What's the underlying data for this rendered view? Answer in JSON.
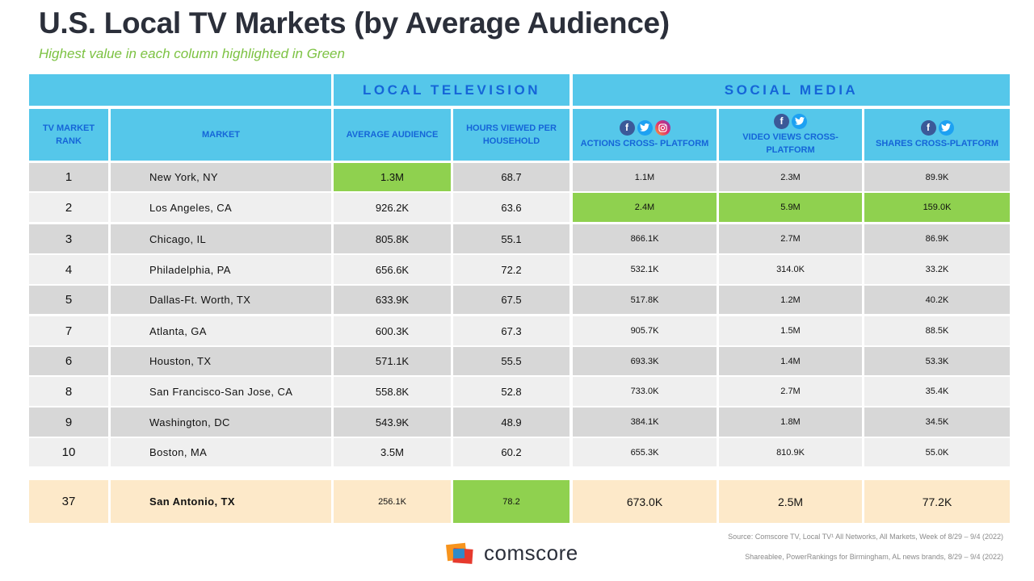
{
  "title": "U.S. Local TV Markets (by Average Audience)",
  "subtitle": "Highest value in each column highlighted in Green",
  "groups": {
    "local_tv": "LOCAL TELEVISION",
    "social_media": "SOCIAL MEDIA"
  },
  "headers": {
    "rank": "TV MARKET RANK",
    "market": "MARKET",
    "avg_audience": "AVERAGE AUDIENCE",
    "hours": "HOURS VIEWED PER HOUSEHOLD",
    "actions": "ACTIONS CROSS- PLATFORM",
    "video_views": "VIDEO VIEWS CROSS-PLATFORM",
    "shares": "SHARES CROSS-PLATFORM"
  },
  "icons": {
    "actions": [
      "facebook-icon",
      "twitter-icon",
      "instagram-icon"
    ],
    "video_views": [
      "facebook-icon",
      "twitter-icon"
    ],
    "shares": [
      "facebook-icon",
      "twitter-icon"
    ]
  },
  "rows": [
    {
      "rank": "1",
      "market": "New York, NY",
      "avg": "1.3M",
      "hours": "68.7",
      "actions": "1.1M",
      "views": "2.3M",
      "shares": "89.9K"
    },
    {
      "rank": "2",
      "market": "Los Angeles, CA",
      "avg": "926.2K",
      "hours": "63.6",
      "actions": "2.4M",
      "views": "5.9M",
      "shares": "159.0K"
    },
    {
      "rank": "3",
      "market": "Chicago, IL",
      "avg": "805.8K",
      "hours": "55.1",
      "actions": "866.1K",
      "views": "2.7M",
      "shares": "86.9K"
    },
    {
      "rank": "4",
      "market": "Philadelphia,  PA",
      "avg": "656.6K",
      "hours": "72.2",
      "actions": "532.1K",
      "views": "314.0K",
      "shares": "33.2K"
    },
    {
      "rank": "5",
      "market": "Dallas-Ft. Worth, TX",
      "avg": "633.9K",
      "hours": "67.5",
      "actions": "517.8K",
      "views": "1.2M",
      "shares": "40.2K"
    },
    {
      "rank": "7",
      "market": "Atlanta, GA",
      "avg": "600.3K",
      "hours": "67.3",
      "actions": "905.7K",
      "views": "1.5M",
      "shares": "88.5K"
    },
    {
      "rank": "6",
      "market": "Houston,  TX",
      "avg": "571.1K",
      "hours": "55.5",
      "actions": "693.3K",
      "views": "1.4M",
      "shares": "53.3K"
    },
    {
      "rank": "8",
      "market": "San Francisco-San Jose, CA",
      "avg": "558.8K",
      "hours": "52.8",
      "actions": "733.0K",
      "views": "2.7M",
      "shares": "35.4K"
    },
    {
      "rank": "9",
      "market": "Washington,  DC",
      "avg": "543.9K",
      "hours": "48.9",
      "actions": "384.1K",
      "views": "1.8M",
      "shares": "34.5K"
    },
    {
      "rank": "10",
      "market": "Boston,  MA",
      "avg": "3.5M",
      "hours": "60.2",
      "actions": "655.3K",
      "views": "810.9K",
      "shares": "55.0K"
    }
  ],
  "highlight": {
    "rank": "37",
    "market": "San Antonio,  TX",
    "avg": "256.1K",
    "hours": "78.2",
    "actions": "673.0K",
    "views": "2.5M",
    "shares": "77.2K"
  },
  "colors": {
    "header": "#55c7ea",
    "header_text": "#1565d8",
    "highlight_green": "#8fd14f",
    "highlight_row": "#fde9c9",
    "subtitle": "#7cc242"
  },
  "source_line_1": "Source: Comscore TV, Local TV¹ All Networks, All Markets, Week of 8/29 – 9/4 (2022)",
  "source_line_2": "Shareablee, PowerRankings for Birmingham, AL news brands, 8/29 – 9/4 (2022)",
  "logo_text": "comscore"
}
